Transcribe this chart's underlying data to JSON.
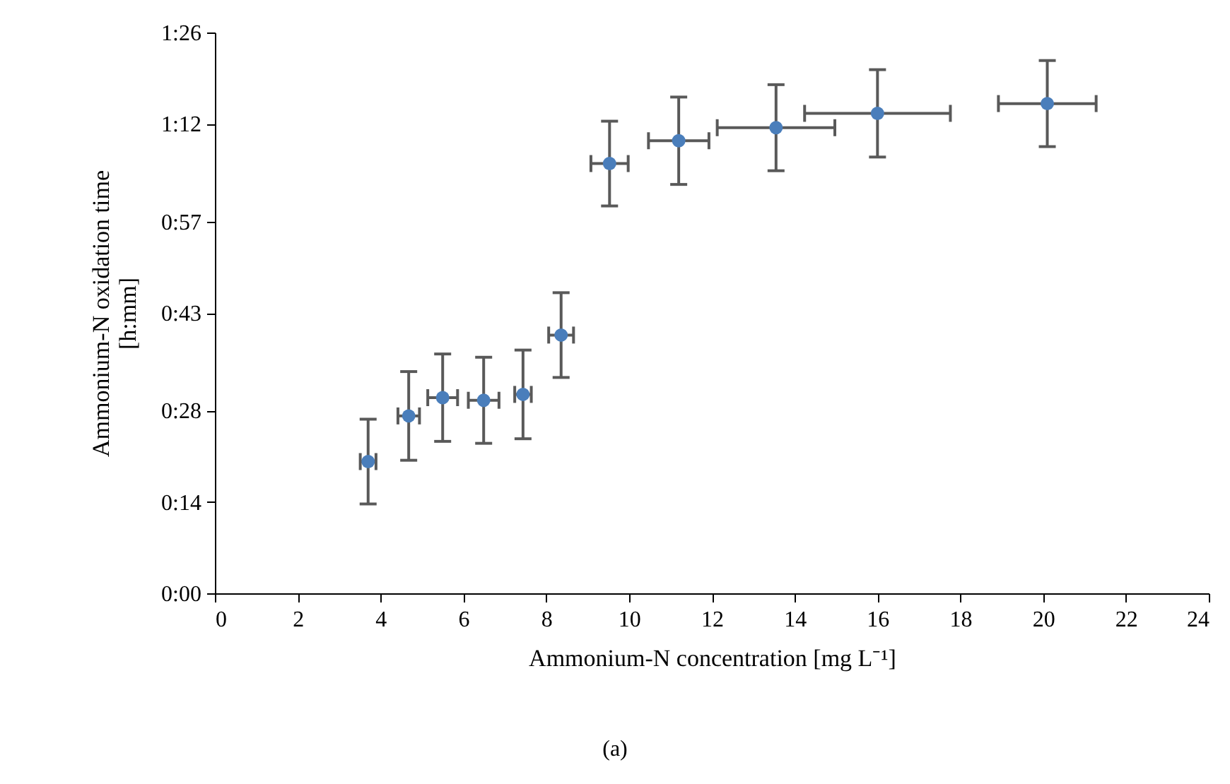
{
  "chart_data": {
    "type": "scatter",
    "xlabel": "Ammonium-N concentration [mg L⁻¹]",
    "ylabel": "Ammonium-N oxidation time\n[h:mm]",
    "annotations": [
      "(a)"
    ],
    "x": [
      3.7,
      4.68,
      5.5,
      6.49,
      7.44,
      8.36,
      9.53,
      11.2,
      13.55,
      16.0,
      20.1
    ],
    "series": [
      {
        "color": "#4a7ebb",
        "values": [
          20.2,
          27.2,
          30.0,
          29.6,
          30.5,
          39.6,
          65.9,
          69.4,
          71.4,
          73.6,
          75.1
        ],
        "errors": [
          6.5,
          6.8,
          6.7,
          6.6,
          6.8,
          6.5,
          6.5,
          6.7,
          6.6,
          6.7,
          6.6
        ],
        "xerrors": [
          0.19,
          0.26,
          0.36,
          0.37,
          0.2,
          0.3,
          0.45,
          0.73,
          1.42,
          1.76,
          1.18
        ]
      }
    ],
    "marker": "circle",
    "xlim": [
      0,
      24
    ],
    "xticks": [
      0,
      2,
      4,
      6,
      8,
      10,
      12,
      14,
      16,
      18,
      20,
      22,
      24
    ],
    "ylim": [
      0,
      86
    ],
    "yticks": [
      {
        "value": 0,
        "label": "0:00"
      },
      {
        "value": 14,
        "label": "0:14"
      },
      {
        "value": 28,
        "label": "0:28"
      },
      {
        "value": 43,
        "label": "0:43"
      },
      {
        "value": 57,
        "label": "0:57"
      },
      {
        "value": 72,
        "label": "1:12"
      },
      {
        "value": 86,
        "label": "1:26"
      }
    ],
    "grid": false
  }
}
